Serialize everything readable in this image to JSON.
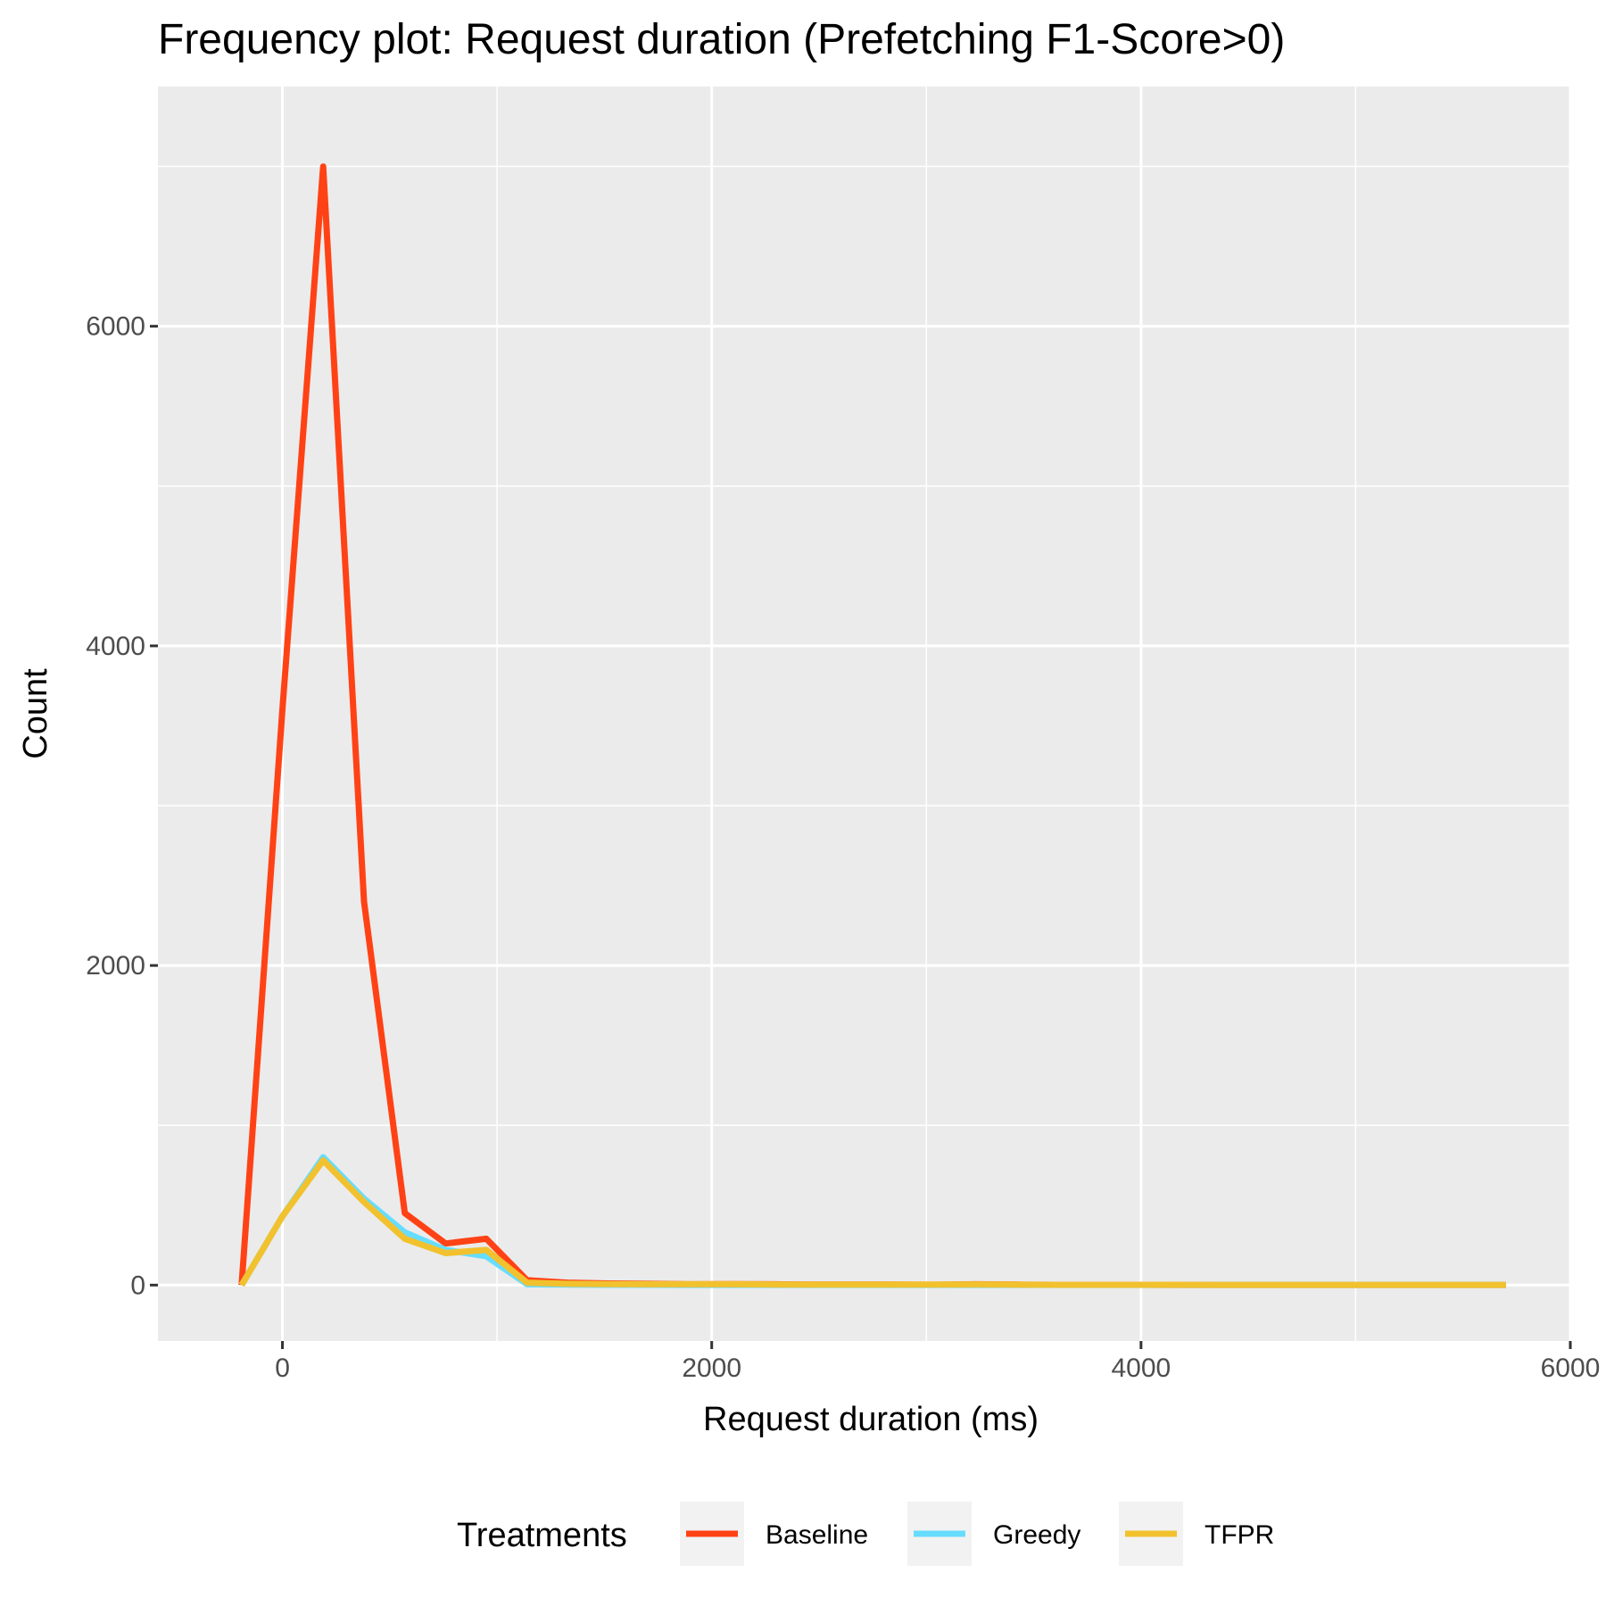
{
  "chart_data": {
    "type": "line",
    "title": "Frequency plot: Request duration (Prefetching F1-Score>0)",
    "xlabel": "Request duration (ms)",
    "ylabel": "Count",
    "xlim": [
      -580,
      6000
    ],
    "ylim": [
      -350,
      7500
    ],
    "x_ticks": [
      0,
      2000,
      4000,
      6000
    ],
    "x_tick_labels": [
      "0",
      "2000",
      "4000",
      "6000"
    ],
    "y_ticks": [
      0,
      2000,
      4000,
      6000
    ],
    "y_tick_labels": [
      "0",
      "2000",
      "4000",
      "6000"
    ],
    "grid": true,
    "background": "#ebebeb",
    "legend_position": "bottom",
    "legend": {
      "title": "Treatments"
    },
    "x": [
      -190,
      0,
      190,
      380,
      570,
      760,
      950,
      1140,
      1330,
      1520,
      1710,
      1900,
      2090,
      2280,
      2470,
      2660,
      2850,
      3040,
      3230,
      3420,
      3610,
      3800,
      3990,
      4180,
      4370,
      4560,
      4750,
      4940,
      5130,
      5320,
      5510,
      5700
    ],
    "series": [
      {
        "name": "Baseline",
        "color": "#ff4215",
        "values": [
          0,
          3600,
          7000,
          2400,
          450,
          260,
          290,
          30,
          15,
          10,
          8,
          5,
          6,
          5,
          3,
          3,
          3,
          2,
          5,
          3,
          2,
          2,
          2,
          1,
          1,
          1,
          1,
          1,
          1,
          1,
          1,
          1
        ]
      },
      {
        "name": "Greedy",
        "color": "#66ddff",
        "values": [
          0,
          430,
          800,
          540,
          330,
          220,
          180,
          5,
          3,
          2,
          2,
          1,
          1,
          1,
          1,
          1,
          1,
          1,
          1,
          1,
          1,
          1,
          1,
          1,
          1,
          1,
          1,
          1,
          1,
          1,
          1,
          1
        ]
      },
      {
        "name": "TFPR",
        "color": "#f2c12e",
        "values": [
          0,
          430,
          780,
          520,
          290,
          200,
          220,
          15,
          8,
          6,
          5,
          5,
          5,
          4,
          3,
          3,
          3,
          3,
          4,
          3,
          2,
          2,
          2,
          2,
          1,
          1,
          1,
          1,
          1,
          1,
          1,
          1
        ]
      }
    ]
  }
}
